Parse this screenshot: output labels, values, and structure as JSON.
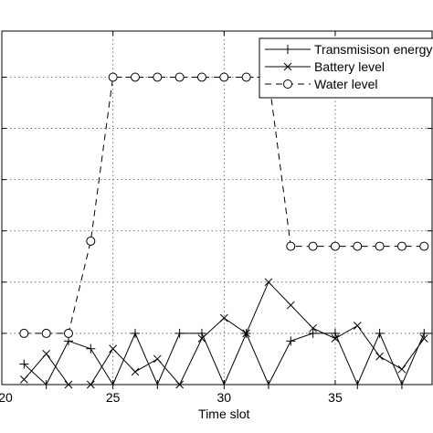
{
  "chart_data": {
    "type": "line",
    "xlabel": "Time slot",
    "ylabel": "",
    "xlim": [
      20,
      39.4
    ],
    "ylim": [
      0,
      6.9
    ],
    "x_ticks": [
      20,
      25,
      30,
      35
    ],
    "x_tick_labels": [
      "20",
      "25",
      "30",
      "35"
    ],
    "y_ticks": [
      0,
      1,
      2,
      3,
      4,
      5,
      6
    ],
    "grid": true,
    "legend_position": "top-right",
    "series": [
      {
        "name": "Transmisison energy",
        "line_style": "solid",
        "marker": "plus",
        "x": [
          21,
          22,
          23,
          24,
          25,
          26,
          27,
          28,
          29,
          30,
          31,
          32,
          33,
          34,
          35,
          36,
          37,
          38,
          39
        ],
        "y": [
          0.4,
          0,
          0.85,
          0.7,
          0,
          1,
          0,
          1,
          1,
          0,
          1,
          0,
          0.85,
          1,
          1,
          0,
          1,
          0,
          1
        ]
      },
      {
        "name": "Battery level",
        "line_style": "solid",
        "marker": "x",
        "x": [
          21,
          22,
          23,
          24,
          25,
          26,
          27,
          28,
          29,
          30,
          31,
          32,
          33,
          34,
          35,
          36,
          37,
          38,
          39
        ],
        "y": [
          0.1,
          0.6,
          0,
          0,
          0.7,
          0.25,
          0.5,
          0,
          0.9,
          1.3,
          1,
          2,
          1.55,
          1.1,
          0.9,
          1.15,
          0.55,
          0.3,
          0.9
        ]
      },
      {
        "name": "Water level",
        "line_style": "dashed",
        "marker": "circle",
        "x": [
          21,
          22,
          23,
          24,
          25,
          26,
          27,
          28,
          29,
          30,
          31,
          32,
          33,
          34,
          35,
          36,
          37,
          38,
          39
        ],
        "y": [
          1,
          1,
          1,
          2.8,
          6,
          6,
          6,
          6,
          6,
          6,
          6,
          6,
          2.7,
          2.7,
          2.7,
          2.7,
          2.7,
          2.7,
          2.7
        ]
      }
    ]
  }
}
